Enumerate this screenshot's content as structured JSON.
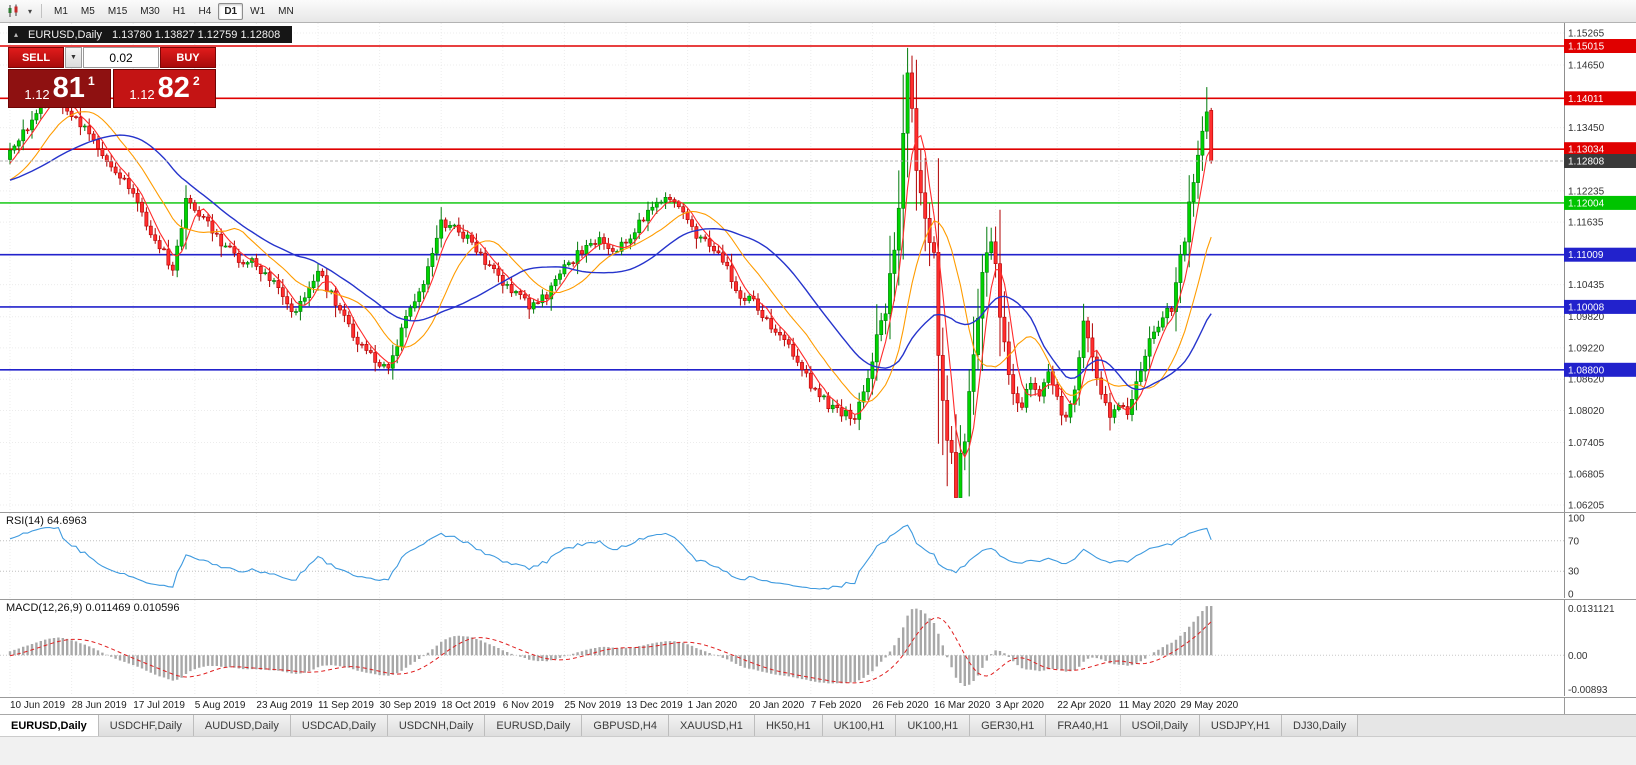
{
  "toolbar": {
    "timeframes": [
      "M1",
      "M5",
      "M15",
      "M30",
      "H1",
      "H4",
      "D1",
      "W1",
      "MN"
    ],
    "active": "D1"
  },
  "chart_header": {
    "collapse_icon": "▴",
    "symbol": "EURUSD,Daily",
    "ohlc": "1.13780 1.13827 1.12759 1.12808"
  },
  "one_click": {
    "sell_label": "SELL",
    "buy_label": "BUY",
    "volume": "0.02",
    "sell_price_small": "1.12",
    "sell_price_big": "81",
    "sell_price_sup": "1",
    "buy_price_small": "1.12",
    "buy_price_big": "82",
    "buy_price_sup": "2"
  },
  "chart_data": {
    "type": "candlestick",
    "symbol": "EURUSD",
    "timeframe": "Daily",
    "bars": 274,
    "prehistory": 45,
    "bars_per_label": 14,
    "price_axis": {
      "top_price": 1.15457,
      "bottom_price": 1.06071,
      "ticks": [
        "1.15265",
        "1.14650",
        "1.13450",
        "1.12235",
        "1.11635",
        "1.10435",
        "1.09820",
        "1.09220",
        "1.08620",
        "1.08020",
        "1.07405",
        "1.06805",
        "1.06205"
      ]
    },
    "x_labels": [
      "10 Jun 2019",
      "28 Jun 2019",
      "17 Jul 2019",
      "5 Aug 2019",
      "23 Aug 2019",
      "11 Sep 2019",
      "30 Sep 2019",
      "18 Oct 2019",
      "6 Nov 2019",
      "25 Nov 2019",
      "13 Dec 2019",
      "1 Jan 2020",
      "20 Jan 2020",
      "7 Feb 2020",
      "26 Feb 2020",
      "16 Mar 2020",
      "3 Apr 2020",
      "22 Apr 2020",
      "11 May 2020",
      "29 May 2020"
    ],
    "level_lines": [
      {
        "price": 1.15015,
        "label": "1.15015",
        "color": "#e00000",
        "width": 1.6
      },
      {
        "price": 1.14011,
        "label": "1.14011",
        "color": "#e00000",
        "width": 1.6
      },
      {
        "price": 1.13034,
        "label": "1.13034",
        "color": "#e00000",
        "width": 1.6
      },
      {
        "price": 1.12004,
        "label": "1.12004",
        "color": "#00c400",
        "width": 1.4
      },
      {
        "price": 1.11009,
        "label": "1.11009",
        "color": "#2222cc",
        "width": 1.6
      },
      {
        "price": 1.10008,
        "label": "1.10008",
        "color": "#2222cc",
        "width": 1.6
      },
      {
        "price": 1.088,
        "label": "1.08800",
        "color": "#2222cc",
        "width": 1.6
      }
    ],
    "current_price": {
      "value": 1.12808,
      "label": "1.12808",
      "chip_color": "#3a3a3a"
    },
    "candle_anchors": [
      [
        -45,
        1.127
      ],
      [
        -38,
        1.1238
      ],
      [
        -30,
        1.121
      ],
      [
        -22,
        1.1256
      ],
      [
        -14,
        1.1242
      ],
      [
        -7,
        1.1218
      ],
      [
        -2,
        1.1282
      ],
      [
        0,
        1.1305
      ],
      [
        4,
        1.1342
      ],
      [
        8,
        1.1398
      ],
      [
        11,
        1.1408
      ],
      [
        14,
        1.1372
      ],
      [
        18,
        1.1336
      ],
      [
        22,
        1.1282
      ],
      [
        28,
        1.1222
      ],
      [
        31,
        1.1152
      ],
      [
        35,
        1.1106
      ],
      [
        37,
        1.1062
      ],
      [
        40,
        1.1202
      ],
      [
        44,
        1.1172
      ],
      [
        48,
        1.1121
      ],
      [
        52,
        1.1092
      ],
      [
        56,
        1.1081
      ],
      [
        60,
        1.1042
      ],
      [
        64,
        1.0992
      ],
      [
        67,
        1.1012
      ],
      [
        70,
        1.1068
      ],
      [
        74,
        1.1012
      ],
      [
        78,
        1.0942
      ],
      [
        82,
        1.0906
      ],
      [
        86,
        1.0882
      ],
      [
        90,
        1.0978
      ],
      [
        94,
        1.1041
      ],
      [
        98,
        1.1158
      ],
      [
        102,
        1.1147
      ],
      [
        106,
        1.1112
      ],
      [
        110,
        1.1071
      ],
      [
        114,
        1.1032
      ],
      [
        118,
        1.1006
      ],
      [
        122,
        1.1022
      ],
      [
        126,
        1.1078
      ],
      [
        130,
        1.1108
      ],
      [
        134,
        1.1128
      ],
      [
        138,
        1.1112
      ],
      [
        142,
        1.1148
      ],
      [
        146,
        1.1198
      ],
      [
        150,
        1.1214
      ],
      [
        154,
        1.1162
      ],
      [
        158,
        1.1122
      ],
      [
        162,
        1.1096
      ],
      [
        166,
        1.1022
      ],
      [
        170,
        1.1001
      ],
      [
        174,
        1.0946
      ],
      [
        178,
        1.0916
      ],
      [
        182,
        1.0848
      ],
      [
        186,
        1.0812
      ],
      [
        192,
        1.0786
      ],
      [
        196,
        1.0902
      ],
      [
        199,
        1.0991
      ],
      [
        202,
        1.1182
      ],
      [
        204,
        1.145
      ],
      [
        206,
        1.1282
      ],
      [
        208,
        1.118
      ],
      [
        210,
        1.1098
      ],
      [
        211,
        1.0921
      ],
      [
        213,
        1.0752
      ],
      [
        215,
        1.0652
      ],
      [
        216,
        1.0701
      ],
      [
        218,
        1.0821
      ],
      [
        220,
        1.0998
      ],
      [
        222,
        1.1102
      ],
      [
        223,
        1.114
      ],
      [
        226,
        1.0921
      ],
      [
        228,
        1.0832
      ],
      [
        230,
        1.0808
      ],
      [
        232,
        1.0862
      ],
      [
        234,
        1.0832
      ],
      [
        236,
        1.0872
      ],
      [
        238,
        1.0822
      ],
      [
        240,
        1.0782
      ],
      [
        242,
        1.0838
      ],
      [
        244,
        1.0972
      ],
      [
        246,
        1.0898
      ],
      [
        248,
        1.0832
      ],
      [
        250,
        1.0796
      ],
      [
        252,
        1.0812
      ],
      [
        254,
        1.0802
      ],
      [
        256,
        1.0852
      ],
      [
        258,
        1.0916
      ],
      [
        260,
        1.0952
      ],
      [
        262,
        1.0982
      ],
      [
        264,
        1.0996
      ],
      [
        266,
        1.1101
      ],
      [
        267,
        1.1134
      ],
      [
        268,
        1.1202
      ],
      [
        269,
        1.1236
      ],
      [
        270,
        1.1292
      ],
      [
        271,
        1.1338
      ],
      [
        272,
        1.1375
      ],
      [
        273,
        1.12808
      ]
    ],
    "last_bar": {
      "o": 1.1378,
      "h": 1.13827,
      "l": 1.12759,
      "c": 1.12808
    },
    "prev_bar": {
      "h": 1.14226,
      "c": 1.1375
    },
    "clamp": {
      "max_high": 1.1498,
      "min_low": 1.0637
    },
    "volatile_bars": [
      196,
      226
    ],
    "moving_averages": [
      {
        "period": 5,
        "color": "#ff2a2a",
        "width": 1.1
      },
      {
        "period": 14,
        "color": "#ff9c00",
        "width": 1.1
      },
      {
        "period": 30,
        "color": "#2634cc",
        "width": 1.4
      }
    ],
    "up_color": "#00d300",
    "up_border": "#007a0a",
    "down_color": "#ff2e2e",
    "down_border": "#b00000",
    "grid_color": "#ececec"
  },
  "rsi": {
    "label": "RSI(14) 64.6963",
    "period": 14,
    "value": 64.6963,
    "scale_labels": [
      "100",
      "70",
      "30",
      "0"
    ],
    "scale_values": [
      100,
      70,
      30,
      0
    ],
    "guide_levels": [
      70,
      30
    ],
    "line_color": "#3e9adf"
  },
  "macd": {
    "label": "MACD(12,26,9) 0.011469 0.010596",
    "fast": 12,
    "slow": 26,
    "signal": 9,
    "macd_value": 0.011469,
    "signal_value": 0.010596,
    "scale_top": "0.0131121",
    "scale_zero": "0.00",
    "scale_bottom": "-0.00893",
    "hist_color": "#a8a8a8",
    "signal_color": "#e02020"
  },
  "tabs": {
    "active_index": 0,
    "items": [
      "EURUSD,Daily",
      "USDCHF,Daily",
      "AUDUSD,Daily",
      "USDCAD,Daily",
      "USDCNH,Daily",
      "EURUSD,Daily",
      "GBPUSD,H4",
      "XAUUSD,H1",
      "HK50,H1",
      "UK100,H1",
      "UK100,H1",
      "GER30,H1",
      "FRA40,H1",
      "USOil,Daily",
      "USDJPY,H1",
      "DJ30,Daily"
    ]
  }
}
